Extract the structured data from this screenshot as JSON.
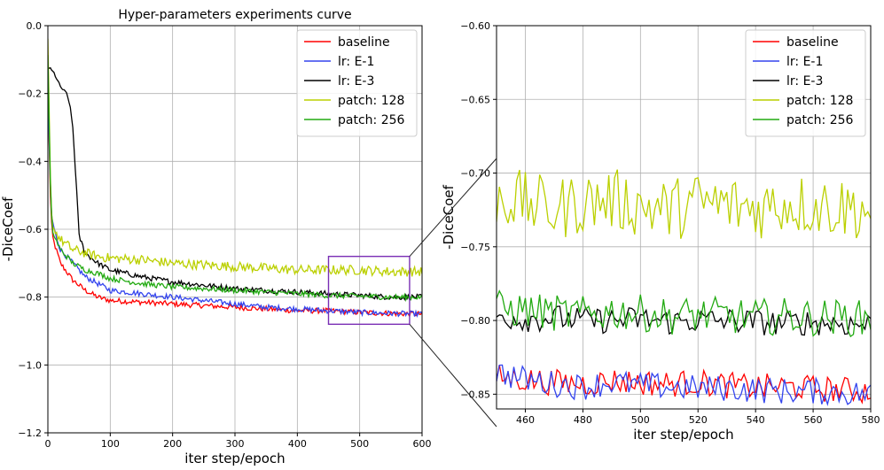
{
  "chart_data": [
    {
      "type": "line",
      "title": "Hyper-parameters experiments curve",
      "xlabel": "iter step/epoch",
      "ylabel": "-DiceCoef",
      "xlim": [
        0,
        600
      ],
      "ylim": [
        -1.2,
        0.0
      ],
      "xticks": [
        0,
        100,
        200,
        300,
        400,
        500,
        600
      ],
      "yticks": [
        0.0,
        -0.2,
        -0.4,
        -0.6,
        -0.8,
        -1.0,
        -1.2
      ],
      "ytick_labels": [
        "0.0",
        "−0.2",
        "−0.4",
        "−0.6",
        "−0.8",
        "−1.0",
        "−1.2"
      ],
      "grid": true,
      "legend_position": "top-right",
      "zoom_box": {
        "x": [
          450,
          580
        ],
        "y": [
          -0.88,
          -0.68
        ]
      },
      "series": [
        {
          "name": "baseline",
          "color": "#ff0000",
          "x": [
            0,
            5,
            10,
            20,
            40,
            60,
            80,
            100,
            150,
            200,
            250,
            300,
            350,
            400,
            450,
            500,
            550,
            600
          ],
          "y": [
            -0.15,
            -0.6,
            -0.64,
            -0.7,
            -0.75,
            -0.78,
            -0.8,
            -0.81,
            -0.815,
            -0.82,
            -0.825,
            -0.83,
            -0.835,
            -0.84,
            -0.84,
            -0.845,
            -0.848,
            -0.85
          ]
        },
        {
          "name": "lr: E-1",
          "color": "#3344ee",
          "x": [
            0,
            5,
            10,
            20,
            40,
            60,
            80,
            100,
            150,
            200,
            250,
            300,
            350,
            400,
            450,
            500,
            550,
            600
          ],
          "y": [
            -0.18,
            -0.55,
            -0.6,
            -0.66,
            -0.7,
            -0.74,
            -0.76,
            -0.78,
            -0.79,
            -0.8,
            -0.81,
            -0.82,
            -0.83,
            -0.835,
            -0.84,
            -0.845,
            -0.848,
            -0.85
          ]
        },
        {
          "name": "lr: E-3",
          "color": "#000000",
          "x": [
            0,
            5,
            10,
            15,
            20,
            25,
            30,
            35,
            40,
            45,
            50,
            60,
            80,
            100,
            150,
            200,
            250,
            300,
            350,
            400,
            450,
            500,
            550,
            600
          ],
          "y": [
            -0.12,
            -0.13,
            -0.14,
            -0.16,
            -0.18,
            -0.19,
            -0.2,
            -0.23,
            -0.3,
            -0.45,
            -0.62,
            -0.67,
            -0.7,
            -0.72,
            -0.74,
            -0.755,
            -0.765,
            -0.775,
            -0.78,
            -0.785,
            -0.79,
            -0.795,
            -0.8,
            -0.8
          ]
        },
        {
          "name": "patch: 128",
          "color": "#bbd000",
          "x": [
            0,
            5,
            10,
            20,
            40,
            60,
            80,
            100,
            150,
            200,
            250,
            300,
            350,
            400,
            450,
            500,
            550,
            600
          ],
          "y": [
            -0.05,
            -0.55,
            -0.6,
            -0.63,
            -0.66,
            -0.67,
            -0.68,
            -0.685,
            -0.69,
            -0.7,
            -0.705,
            -0.71,
            -0.715,
            -0.72,
            -0.72,
            -0.72,
            -0.725,
            -0.725
          ]
        },
        {
          "name": "patch: 256",
          "color": "#22aa11",
          "x": [
            0,
            5,
            10,
            20,
            40,
            60,
            80,
            100,
            150,
            200,
            250,
            300,
            350,
            400,
            450,
            500,
            550,
            600
          ],
          "y": [
            -0.1,
            -0.58,
            -0.62,
            -0.66,
            -0.7,
            -0.72,
            -0.73,
            -0.745,
            -0.76,
            -0.77,
            -0.775,
            -0.78,
            -0.785,
            -0.79,
            -0.795,
            -0.797,
            -0.8,
            -0.8
          ]
        }
      ]
    },
    {
      "type": "line",
      "title": "",
      "xlabel": "iter step/epoch",
      "ylabel": "-DiceCoef",
      "xlim": [
        450,
        580
      ],
      "ylim": [
        -0.86,
        -0.6
      ],
      "xticks": [
        460,
        480,
        500,
        520,
        540,
        560,
        580
      ],
      "yticks": [
        -0.6,
        -0.65,
        -0.7,
        -0.75,
        -0.8,
        -0.85
      ],
      "ytick_labels": [
        "−0.60",
        "−0.65",
        "−0.70",
        "−0.75",
        "−0.80",
        "−0.85"
      ],
      "grid": true,
      "legend_position": "top-right",
      "series": [
        {
          "name": "baseline",
          "color": "#ff0000",
          "x": [
            450,
            460,
            470,
            480,
            490,
            500,
            510,
            520,
            530,
            540,
            550,
            560,
            570,
            580
          ],
          "y": [
            -0.838,
            -0.84,
            -0.842,
            -0.843,
            -0.841,
            -0.842,
            -0.843,
            -0.842,
            -0.844,
            -0.845,
            -0.845,
            -0.846,
            -0.847,
            -0.848
          ]
        },
        {
          "name": "lr: E-1",
          "color": "#3344ee",
          "x": [
            450,
            460,
            470,
            480,
            490,
            500,
            510,
            520,
            530,
            540,
            550,
            560,
            570,
            580
          ],
          "y": [
            -0.835,
            -0.84,
            -0.843,
            -0.845,
            -0.842,
            -0.844,
            -0.845,
            -0.846,
            -0.846,
            -0.847,
            -0.848,
            -0.848,
            -0.849,
            -0.85
          ]
        },
        {
          "name": "lr: E-3",
          "color": "#000000",
          "x": [
            450,
            460,
            470,
            480,
            490,
            500,
            510,
            520,
            530,
            540,
            550,
            560,
            570,
            580
          ],
          "y": [
            -0.797,
            -0.799,
            -0.798,
            -0.8,
            -0.8,
            -0.799,
            -0.801,
            -0.8,
            -0.8,
            -0.801,
            -0.802,
            -0.801,
            -0.802,
            -0.803
          ]
        },
        {
          "name": "patch: 128",
          "color": "#bbd000",
          "x": [
            450,
            460,
            470,
            480,
            490,
            500,
            510,
            520,
            530,
            540,
            550,
            560,
            570,
            580
          ],
          "y": [
            -0.715,
            -0.72,
            -0.725,
            -0.72,
            -0.718,
            -0.722,
            -0.725,
            -0.72,
            -0.722,
            -0.724,
            -0.72,
            -0.722,
            -0.723,
            -0.725
          ]
        },
        {
          "name": "patch: 256",
          "color": "#22aa11",
          "x": [
            450,
            460,
            470,
            480,
            490,
            500,
            510,
            520,
            530,
            540,
            550,
            560,
            570,
            580
          ],
          "y": [
            -0.792,
            -0.793,
            -0.795,
            -0.796,
            -0.794,
            -0.795,
            -0.797,
            -0.796,
            -0.797,
            -0.798,
            -0.797,
            -0.798,
            -0.798,
            -0.799
          ]
        }
      ]
    }
  ]
}
